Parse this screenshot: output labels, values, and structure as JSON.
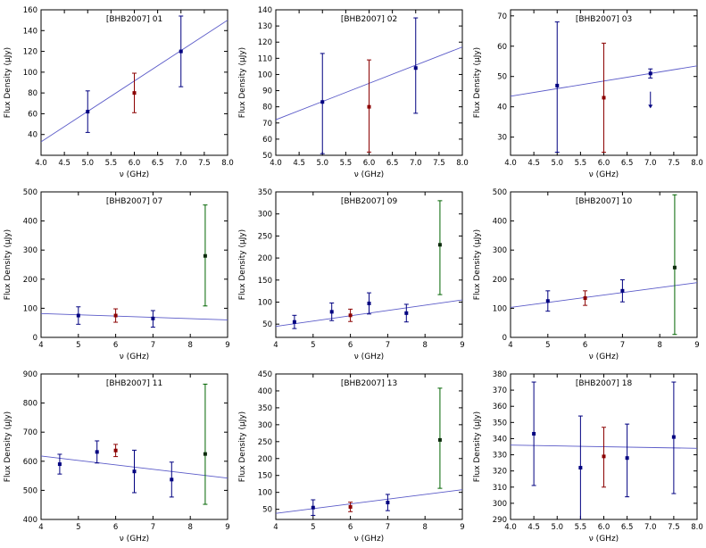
{
  "figure": {
    "background": "#ffffff",
    "xlabel": "ν (GHz)",
    "ylabel": "Flux Density (μJy)"
  },
  "colors": {
    "navy": "#000080",
    "red": "#8b0000",
    "green": "#006400",
    "green_marker": "#0d2b0d",
    "line": "#5a5ac8",
    "axis": "#000000",
    "text": "#000000"
  },
  "chart_data": [
    {
      "type": "scatter",
      "title": "[BHB2007] 01",
      "xlabel": "ν (GHz)",
      "ylabel": "Flux Density (μJy)",
      "xlim": [
        4,
        8
      ],
      "xticks": [
        4,
        4.5,
        5,
        5.5,
        6,
        6.5,
        7,
        7.5,
        8
      ],
      "xtick_labels": [
        "4.0",
        "4.5",
        "5.0",
        "5.5",
        "6.0",
        "6.5",
        "7.0",
        "7.5",
        "8.0"
      ],
      "ylim": [
        20,
        160
      ],
      "yticks": [
        40,
        60,
        80,
        100,
        120,
        140,
        160
      ],
      "ytick_labels": [
        "40",
        "60",
        "80",
        "100",
        "120",
        "140",
        "160"
      ],
      "fit_line": {
        "x": [
          4,
          8
        ],
        "y": [
          33,
          150
        ]
      },
      "points": [
        {
          "x": 5,
          "y": 62,
          "lo": 42,
          "hi": 82,
          "c": "navy"
        },
        {
          "x": 6,
          "y": 80,
          "lo": 61,
          "hi": 99,
          "c": "red"
        },
        {
          "x": 7,
          "y": 120,
          "lo": 86,
          "hi": 154,
          "c": "navy"
        }
      ],
      "upper_limits": []
    },
    {
      "type": "scatter",
      "title": "[BHB2007] 02",
      "xlabel": "ν (GHz)",
      "ylabel": "Flux Density (μJy)",
      "xlim": [
        4,
        8
      ],
      "xticks": [
        4,
        4.5,
        5,
        5.5,
        6,
        6.5,
        7,
        7.5,
        8
      ],
      "xtick_labels": [
        "4.0",
        "4.5",
        "5.0",
        "5.5",
        "6.0",
        "6.5",
        "7.0",
        "7.5",
        "8.0"
      ],
      "ylim": [
        50,
        140
      ],
      "yticks": [
        50,
        60,
        70,
        80,
        90,
        100,
        110,
        120,
        130,
        140
      ],
      "ytick_labels": [
        "50",
        "60",
        "70",
        "80",
        "90",
        "100",
        "110",
        "120",
        "130",
        "140"
      ],
      "fit_line": {
        "x": [
          4,
          8
        ],
        "y": [
          72,
          117
        ]
      },
      "points": [
        {
          "x": 5,
          "y": 83,
          "lo": 51,
          "hi": 113,
          "c": "navy"
        },
        {
          "x": 6,
          "y": 80,
          "lo": 52,
          "hi": 109,
          "c": "red"
        },
        {
          "x": 7,
          "y": 104,
          "lo": 76,
          "hi": 135,
          "c": "navy"
        }
      ],
      "upper_limits": []
    },
    {
      "type": "scatter",
      "title": "[BHB2007] 03",
      "xlabel": "ν (GHz)",
      "ylabel": "Flux Density (μJy)",
      "xlim": [
        4,
        8
      ],
      "xticks": [
        4,
        4.5,
        5,
        5.5,
        6,
        6.5,
        7,
        7.5,
        8
      ],
      "xtick_labels": [
        "4.0",
        "4.5",
        "5.0",
        "5.5",
        "6.0",
        "6.5",
        "7.0",
        "7.5",
        "8.0"
      ],
      "ylim": [
        24,
        72
      ],
      "yticks": [
        30,
        40,
        50,
        60,
        70
      ],
      "ytick_labels": [
        "30",
        "40",
        "50",
        "60",
        "70"
      ],
      "fit_line": {
        "x": [
          4,
          8
        ],
        "y": [
          43.5,
          53.5
        ]
      },
      "points": [
        {
          "x": 5,
          "y": 47,
          "lo": 25,
          "hi": 68,
          "c": "navy"
        },
        {
          "x": 6,
          "y": 43,
          "lo": 25,
          "hi": 61,
          "c": "red"
        },
        {
          "x": 7,
          "y": 51,
          "lo": 49.5,
          "hi": 52.5,
          "c": "navy"
        }
      ],
      "upper_limits": [
        {
          "x": 7,
          "from": 45,
          "tip": 39.5
        }
      ]
    },
    {
      "type": "scatter",
      "title": "[BHB2007] 07",
      "xlabel": "ν (GHz)",
      "ylabel": "Flux Density (μJy)",
      "xlim": [
        4,
        9
      ],
      "xticks": [
        4,
        5,
        6,
        7,
        8,
        9
      ],
      "xtick_labels": [
        "4",
        "5",
        "6",
        "7",
        "8",
        "9"
      ],
      "ylim": [
        0,
        500
      ],
      "yticks": [
        0,
        100,
        200,
        300,
        400,
        500
      ],
      "ytick_labels": [
        "0",
        "100",
        "200",
        "300",
        "400",
        "500"
      ],
      "fit_line": {
        "x": [
          4,
          9
        ],
        "y": [
          82,
          60
        ]
      },
      "points": [
        {
          "x": 5,
          "y": 75,
          "lo": 45,
          "hi": 105,
          "c": "navy"
        },
        {
          "x": 6,
          "y": 75,
          "lo": 52,
          "hi": 98,
          "c": "red"
        },
        {
          "x": 7,
          "y": 65,
          "lo": 35,
          "hi": 92,
          "c": "navy"
        },
        {
          "x": 8.4,
          "y": 280,
          "lo": 108,
          "hi": 455,
          "c": "green"
        }
      ],
      "upper_limits": []
    },
    {
      "type": "scatter",
      "title": "[BHB2007] 09",
      "xlabel": "ν (GHz)",
      "ylabel": "Flux Density (μJy)",
      "xlim": [
        4,
        9
      ],
      "xticks": [
        4,
        5,
        6,
        7,
        8,
        9
      ],
      "xtick_labels": [
        "4",
        "5",
        "6",
        "7",
        "8",
        "9"
      ],
      "ylim": [
        20,
        350
      ],
      "yticks": [
        50,
        100,
        150,
        200,
        250,
        300,
        350
      ],
      "ytick_labels": [
        "50",
        "100",
        "150",
        "200",
        "250",
        "300",
        "350"
      ],
      "fit_line": {
        "x": [
          4,
          9
        ],
        "y": [
          45,
          105
        ]
      },
      "points": [
        {
          "x": 4.5,
          "y": 55,
          "lo": 40,
          "hi": 70,
          "c": "navy"
        },
        {
          "x": 5.5,
          "y": 78,
          "lo": 58,
          "hi": 98,
          "c": "navy"
        },
        {
          "x": 6,
          "y": 70,
          "lo": 56,
          "hi": 84,
          "c": "red"
        },
        {
          "x": 6.5,
          "y": 97,
          "lo": 73,
          "hi": 121,
          "c": "navy"
        },
        {
          "x": 7.5,
          "y": 75,
          "lo": 55,
          "hi": 95,
          "c": "navy"
        },
        {
          "x": 8.4,
          "y": 230,
          "lo": 117,
          "hi": 330,
          "c": "green"
        }
      ],
      "upper_limits": []
    },
    {
      "type": "scatter",
      "title": "[BHB2007] 10",
      "xlabel": "ν (GHz)",
      "ylabel": "Flux Density (μJy)",
      "xlim": [
        4,
        9
      ],
      "xticks": [
        4,
        5,
        6,
        7,
        8,
        9
      ],
      "xtick_labels": [
        "4",
        "5",
        "6",
        "7",
        "8",
        "9"
      ],
      "ylim": [
        0,
        500
      ],
      "yticks": [
        0,
        100,
        200,
        300,
        400,
        500
      ],
      "ytick_labels": [
        "0",
        "100",
        "200",
        "300",
        "400",
        "500"
      ],
      "fit_line": {
        "x": [
          4,
          9
        ],
        "y": [
          103,
          188
        ]
      },
      "points": [
        {
          "x": 5,
          "y": 125,
          "lo": 90,
          "hi": 160,
          "c": "navy"
        },
        {
          "x": 6,
          "y": 135,
          "lo": 110,
          "hi": 160,
          "c": "red"
        },
        {
          "x": 7,
          "y": 160,
          "lo": 122,
          "hi": 198,
          "c": "navy"
        },
        {
          "x": 8.4,
          "y": 240,
          "lo": 10,
          "hi": 490,
          "c": "green"
        }
      ],
      "upper_limits": []
    },
    {
      "type": "scatter",
      "title": "[BHB2007] 11",
      "xlabel": "ν (GHz)",
      "ylabel": "Flux Density (μJy)",
      "xlim": [
        4,
        9
      ],
      "xticks": [
        4,
        5,
        6,
        7,
        8,
        9
      ],
      "xtick_labels": [
        "4",
        "5",
        "6",
        "7",
        "8",
        "9"
      ],
      "ylim": [
        400,
        900
      ],
      "yticks": [
        400,
        500,
        600,
        700,
        800,
        900
      ],
      "ytick_labels": [
        "400",
        "500",
        "600",
        "700",
        "800",
        "900"
      ],
      "fit_line": {
        "x": [
          4,
          9
        ],
        "y": [
          618,
          542
        ]
      },
      "points": [
        {
          "x": 4.5,
          "y": 590,
          "lo": 556,
          "hi": 624,
          "c": "navy"
        },
        {
          "x": 5.5,
          "y": 632,
          "lo": 594,
          "hi": 670,
          "c": "navy"
        },
        {
          "x": 6,
          "y": 637,
          "lo": 616,
          "hi": 658,
          "c": "red"
        },
        {
          "x": 6.5,
          "y": 565,
          "lo": 492,
          "hi": 638,
          "c": "navy"
        },
        {
          "x": 7.5,
          "y": 537,
          "lo": 477,
          "hi": 597,
          "c": "navy"
        },
        {
          "x": 8.4,
          "y": 625,
          "lo": 452,
          "hi": 865,
          "c": "green"
        }
      ],
      "upper_limits": []
    },
    {
      "type": "scatter",
      "title": "[BHB2007] 13",
      "xlabel": "ν (GHz)",
      "ylabel": "Flux Density (μJy)",
      "xlim": [
        4,
        9
      ],
      "xticks": [
        4,
        5,
        6,
        7,
        8,
        9
      ],
      "xtick_labels": [
        "4",
        "5",
        "6",
        "7",
        "8",
        "9"
      ],
      "ylim": [
        20,
        450
      ],
      "yticks": [
        50,
        100,
        150,
        200,
        250,
        300,
        350,
        400,
        450
      ],
      "ytick_labels": [
        "50",
        "100",
        "150",
        "200",
        "250",
        "300",
        "350",
        "400",
        "450"
      ],
      "fit_line": {
        "x": [
          4,
          9
        ],
        "y": [
          38,
          108
        ]
      },
      "points": [
        {
          "x": 5,
          "y": 55,
          "lo": 32,
          "hi": 78,
          "c": "navy"
        },
        {
          "x": 6,
          "y": 57,
          "lo": 43,
          "hi": 71,
          "c": "red"
        },
        {
          "x": 7,
          "y": 70,
          "lo": 46,
          "hi": 94,
          "c": "navy"
        },
        {
          "x": 8.4,
          "y": 255,
          "lo": 112,
          "hi": 408,
          "c": "green"
        }
      ],
      "upper_limits": []
    },
    {
      "type": "scatter",
      "title": "[BHB2007] 18",
      "xlabel": "ν (GHz)",
      "ylabel": "Flux Density (μJy)",
      "xlim": [
        4,
        8
      ],
      "xticks": [
        4,
        4.5,
        5,
        5.5,
        6,
        6.5,
        7,
        7.5,
        8
      ],
      "xtick_labels": [
        "4.0",
        "4.5",
        "5.0",
        "5.5",
        "6.0",
        "6.5",
        "7.0",
        "7.5",
        "8.0"
      ],
      "ylim": [
        290,
        380
      ],
      "yticks": [
        290,
        300,
        310,
        320,
        330,
        340,
        350,
        360,
        370,
        380
      ],
      "ytick_labels": [
        "290",
        "300",
        "310",
        "320",
        "330",
        "340",
        "350",
        "360",
        "370",
        "380"
      ],
      "fit_line": {
        "x": [
          4,
          8
        ],
        "y": [
          336,
          334
        ]
      },
      "points": [
        {
          "x": 4.5,
          "y": 343,
          "lo": 311,
          "hi": 375,
          "c": "navy"
        },
        {
          "x": 5.5,
          "y": 322,
          "lo": 284,
          "hi": 354,
          "c": "navy"
        },
        {
          "x": 6,
          "y": 329,
          "lo": 310,
          "hi": 347,
          "c": "red"
        },
        {
          "x": 6.5,
          "y": 328,
          "lo": 304,
          "hi": 349,
          "c": "navy"
        },
        {
          "x": 7.5,
          "y": 341,
          "lo": 306,
          "hi": 375,
          "c": "navy"
        }
      ],
      "upper_limits": []
    }
  ]
}
